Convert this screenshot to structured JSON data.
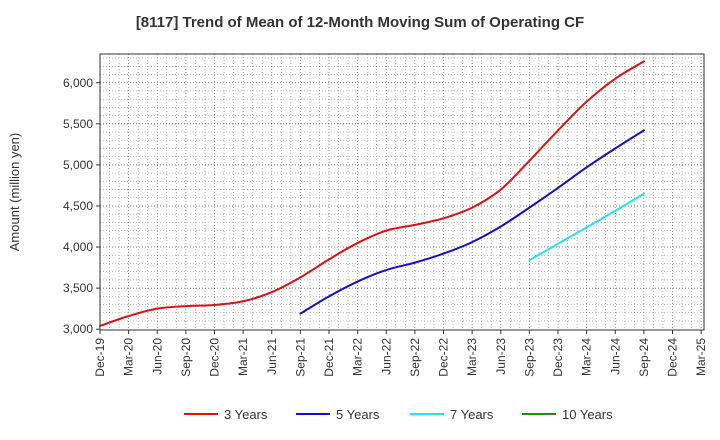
{
  "chart_data": {
    "type": "line",
    "title": "[8117]  Trend of Mean of 12-Month Moving Sum of Operating CF",
    "xlabel": "",
    "ylabel": "Amount (million yen)",
    "ylim": [
      2990,
      6350
    ],
    "yticks": [
      3000,
      3500,
      4000,
      4500,
      5000,
      5500,
      6000
    ],
    "ytick_labels": [
      "3,000",
      "3,500",
      "4,000",
      "4,500",
      "5,000",
      "5,500",
      "6,000"
    ],
    "categories": [
      "Dec-19",
      "Mar-20",
      "Jun-20",
      "Sep-20",
      "Dec-20",
      "Mar-21",
      "Jun-21",
      "Sep-21",
      "Dec-21",
      "Mar-22",
      "Jun-22",
      "Sep-22",
      "Dec-22",
      "Mar-23",
      "Jun-23",
      "Sep-23",
      "Dec-23",
      "Mar-24",
      "Jun-24",
      "Sep-24",
      "Dec-24",
      "Mar-25"
    ],
    "grid": true,
    "legend_position": "bottom",
    "series": [
      {
        "name": "3 Years",
        "color": "#dd1111",
        "points": [
          [
            0,
            3040
          ],
          [
            1,
            3160
          ],
          [
            2,
            3250
          ],
          [
            3,
            3280
          ],
          [
            4,
            3295
          ],
          [
            5,
            3340
          ],
          [
            6,
            3450
          ],
          [
            7,
            3630
          ],
          [
            8,
            3850
          ],
          [
            9,
            4050
          ],
          [
            10,
            4200
          ],
          [
            11,
            4270
          ],
          [
            12,
            4350
          ],
          [
            13,
            4480
          ],
          [
            14,
            4700
          ],
          [
            15,
            5050
          ],
          [
            16,
            5420
          ],
          [
            17,
            5770
          ],
          [
            18,
            6050
          ],
          [
            19,
            6260
          ]
        ]
      },
      {
        "name": "5 Years",
        "color": "#1111cc",
        "points": [
          [
            7,
            3190
          ],
          [
            8,
            3400
          ],
          [
            9,
            3580
          ],
          [
            10,
            3720
          ],
          [
            11,
            3810
          ],
          [
            12,
            3920
          ],
          [
            13,
            4060
          ],
          [
            14,
            4250
          ],
          [
            15,
            4480
          ],
          [
            16,
            4720
          ],
          [
            17,
            4970
          ],
          [
            18,
            5200
          ],
          [
            19,
            5420
          ]
        ]
      },
      {
        "name": "7 Years",
        "color": "#22e5e5",
        "points": [
          [
            15,
            3840
          ],
          [
            16,
            4040
          ],
          [
            17,
            4240
          ],
          [
            18,
            4440
          ],
          [
            19,
            4650
          ]
        ]
      },
      {
        "name": "10 Years",
        "color": "#228822",
        "points": []
      }
    ]
  }
}
